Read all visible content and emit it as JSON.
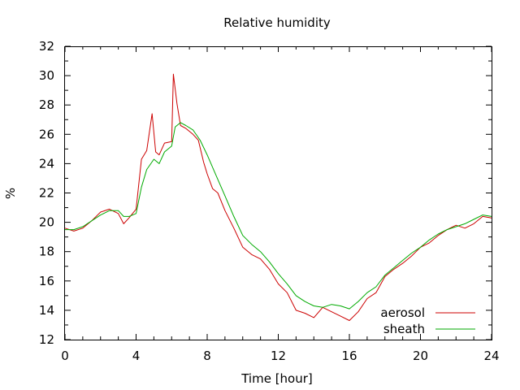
{
  "chart_data": {
    "type": "line",
    "title": "Relative humidity",
    "xlabel": "Time [hour]",
    "ylabel": "%",
    "xlim": [
      0,
      24
    ],
    "ylim": [
      12,
      32
    ],
    "xticks": [
      0,
      4,
      8,
      12,
      16,
      20,
      24
    ],
    "yticks": [
      12,
      14,
      16,
      18,
      20,
      22,
      24,
      26,
      28,
      30,
      32
    ],
    "grid": false,
    "legend_position": "bottom-right",
    "series": [
      {
        "name": "aerosol",
        "color": "#cc0000",
        "x": [
          0,
          0.5,
          1,
          1.5,
          2,
          2.5,
          3,
          3.3,
          3.6,
          4,
          4.3,
          4.6,
          4.9,
          5.1,
          5.3,
          5.6,
          6,
          6.1,
          6.3,
          6.5,
          6.8,
          7.2,
          7.5,
          7.8,
          8,
          8.3,
          8.6,
          9,
          9.5,
          10,
          10.5,
          11,
          11.5,
          12,
          12.5,
          13,
          13.5,
          14,
          14.5,
          15,
          15.5,
          16,
          16.5,
          17,
          17.5,
          18,
          18.5,
          19,
          19.5,
          20,
          20.5,
          21,
          21.5,
          22,
          22.5,
          23,
          23.5,
          24
        ],
        "y": [
          19.6,
          19.4,
          19.6,
          20.1,
          20.7,
          20.9,
          20.6,
          19.9,
          20.3,
          20.9,
          24.3,
          24.9,
          27.4,
          24.8,
          24.6,
          25.4,
          25.5,
          30.1,
          28.1,
          26.6,
          26.4,
          26.0,
          25.6,
          24.1,
          23.3,
          22.3,
          22.0,
          20.8,
          19.6,
          18.3,
          17.8,
          17.5,
          16.8,
          15.8,
          15.2,
          14.0,
          13.8,
          13.5,
          14.2,
          13.9,
          13.6,
          13.3,
          13.9,
          14.8,
          15.2,
          16.3,
          16.8,
          17.2,
          17.7,
          18.3,
          18.6,
          19.1,
          19.5,
          19.8,
          19.6,
          19.9,
          20.4,
          20.3
        ]
      },
      {
        "name": "sheath",
        "color": "#00aa00",
        "x": [
          0,
          0.5,
          1,
          1.5,
          2,
          2.5,
          3,
          3.3,
          3.6,
          4,
          4.3,
          4.6,
          5,
          5.3,
          5.6,
          6,
          6.2,
          6.5,
          6.8,
          7.2,
          7.6,
          8,
          8.5,
          9,
          9.5,
          10,
          10.5,
          11,
          11.5,
          12,
          12.5,
          13,
          13.5,
          14,
          14.5,
          15,
          15.5,
          16,
          16.5,
          17,
          17.5,
          18,
          18.5,
          19,
          19.5,
          20,
          20.5,
          21,
          21.5,
          22,
          22.5,
          23,
          23.5,
          24
        ],
        "y": [
          19.5,
          19.5,
          19.7,
          20.1,
          20.5,
          20.8,
          20.8,
          20.4,
          20.4,
          20.6,
          22.4,
          23.6,
          24.3,
          24.0,
          24.8,
          25.2,
          26.5,
          26.8,
          26.6,
          26.3,
          25.6,
          24.6,
          23.2,
          21.8,
          20.4,
          19.1,
          18.5,
          18.0,
          17.3,
          16.5,
          15.8,
          15.0,
          14.6,
          14.3,
          14.2,
          14.4,
          14.3,
          14.1,
          14.6,
          15.2,
          15.6,
          16.4,
          16.9,
          17.4,
          17.9,
          18.3,
          18.8,
          19.2,
          19.5,
          19.7,
          19.9,
          20.2,
          20.5,
          20.4
        ]
      }
    ]
  }
}
